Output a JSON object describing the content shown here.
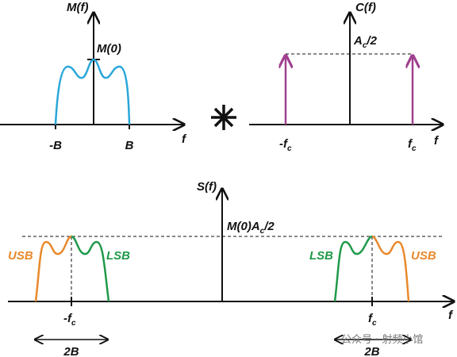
{
  "top_left": {
    "y_label": "M(f)",
    "peak_label": "M(0)",
    "x_ticks": [
      "-B",
      "B"
    ],
    "x_label": "f"
  },
  "top_right": {
    "y_label": "C(f)",
    "level_label": {
      "main": "A",
      "sub": "c",
      "rest": "/2"
    },
    "x_ticks": [
      {
        "main": "-f",
        "sub": "c"
      },
      {
        "main": "f",
        "sub": "c"
      }
    ],
    "x_label": "f"
  },
  "bottom": {
    "y_label": "S(f)",
    "level_label": {
      "main": "M(0)A",
      "sub": "c",
      "rest": "/2"
    },
    "band_labels": [
      "USB",
      "LSB",
      "LSB",
      "USB"
    ],
    "x_ticks": [
      {
        "main": "-f",
        "sub": "c"
      },
      {
        "main": "f",
        "sub": "c"
      }
    ],
    "width_labels": [
      "2B",
      "2B"
    ],
    "x_label": "f"
  },
  "watermark": "公众号 · 射频小馆"
}
